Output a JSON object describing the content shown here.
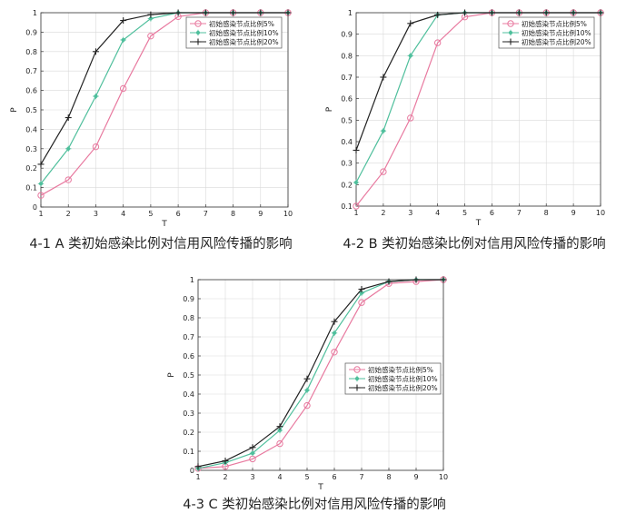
{
  "figure": {
    "background": "#ffffff",
    "series_colors": [
      "#e8799f",
      "#4fbf9c",
      "#222222"
    ],
    "series_markers": [
      "circle",
      "star",
      "plus"
    ]
  },
  "chart_data": [
    {
      "type": "line",
      "caption": "4-1 A 类初始感染比例对信用风险传播的影响",
      "xlabel": "T",
      "ylabel": "P",
      "xlim": [
        1,
        10
      ],
      "ylim": [
        0,
        1
      ],
      "xticks": [
        "1",
        "2",
        "3",
        "4",
        "5",
        "6",
        "7",
        "8",
        "9",
        "10"
      ],
      "yticks": [
        "0",
        "0.1",
        "0.2",
        "0.3",
        "0.4",
        "0.5",
        "0.6",
        "0.7",
        "0.8",
        "0.9",
        "1"
      ],
      "grid": true,
      "legend_position": "top-right",
      "x": [
        1,
        2,
        3,
        4,
        5,
        6,
        7,
        8,
        9,
        10
      ],
      "series": [
        {
          "name": "初始感染节点比例5%",
          "values": [
            0.06,
            0.14,
            0.31,
            0.61,
            0.88,
            0.98,
            1.0,
            1.0,
            1.0,
            1.0
          ]
        },
        {
          "name": "初始感染节点比例10%",
          "values": [
            0.12,
            0.3,
            0.57,
            0.86,
            0.97,
            1.0,
            1.0,
            1.0,
            1.0,
            1.0
          ]
        },
        {
          "name": "初始感染节点比例20%",
          "values": [
            0.22,
            0.46,
            0.8,
            0.96,
            0.99,
            1.0,
            1.0,
            1.0,
            1.0,
            1.0
          ]
        }
      ]
    },
    {
      "type": "line",
      "caption": "4-2 B 类初始感染比例对信用风险传播的影响",
      "xlabel": "T",
      "ylabel": "P",
      "xlim": [
        1,
        10
      ],
      "ylim": [
        0.1,
        1
      ],
      "xticks": [
        "1",
        "2",
        "3",
        "4",
        "5",
        "6",
        "7",
        "8",
        "9",
        "10"
      ],
      "yticks": [
        "0.1",
        "0.2",
        "0.3",
        "0.4",
        "0.5",
        "0.6",
        "0.7",
        "0.8",
        "0.9",
        "1"
      ],
      "grid": true,
      "legend_position": "top-right",
      "x": [
        1,
        2,
        3,
        4,
        5,
        6,
        7,
        8,
        9,
        10
      ],
      "series": [
        {
          "name": "初始感染节点比例5%",
          "values": [
            0.1,
            0.26,
            0.51,
            0.86,
            0.98,
            1.0,
            1.0,
            1.0,
            1.0,
            1.0
          ]
        },
        {
          "name": "初始感染节点比例10%",
          "values": [
            0.21,
            0.45,
            0.8,
            0.99,
            1.0,
            1.0,
            1.0,
            1.0,
            1.0,
            1.0
          ]
        },
        {
          "name": "初始感染节点比例20%",
          "values": [
            0.36,
            0.7,
            0.95,
            0.99,
            1.0,
            1.0,
            1.0,
            1.0,
            1.0,
            1.0
          ]
        }
      ]
    },
    {
      "type": "line",
      "caption": "4-3 C 类初始感染比例对信用风险传播的影响",
      "xlabel": "T",
      "ylabel": "P",
      "xlim": [
        1,
        10
      ],
      "ylim": [
        0,
        1
      ],
      "xticks": [
        "1",
        "2",
        "3",
        "4",
        "5",
        "6",
        "7",
        "8",
        "9",
        "10"
      ],
      "yticks": [
        "0",
        "0.1",
        "0.2",
        "0.3",
        "0.4",
        "0.5",
        "0.6",
        "0.7",
        "0.8",
        "0.9",
        "1"
      ],
      "grid": true,
      "legend_position": "center-right",
      "x": [
        1,
        2,
        3,
        4,
        5,
        6,
        7,
        8,
        9,
        10
      ],
      "series": [
        {
          "name": "初始感染节点比例5%",
          "values": [
            0.01,
            0.02,
            0.06,
            0.14,
            0.34,
            0.62,
            0.88,
            0.98,
            0.99,
            1.0
          ]
        },
        {
          "name": "初始感染节点比例10%",
          "values": [
            0.01,
            0.04,
            0.09,
            0.21,
            0.42,
            0.72,
            0.93,
            0.99,
            1.0,
            1.0
          ]
        },
        {
          "name": "初始感染节点比例20%",
          "values": [
            0.02,
            0.05,
            0.12,
            0.23,
            0.48,
            0.78,
            0.95,
            0.99,
            1.0,
            1.0
          ]
        }
      ]
    }
  ]
}
